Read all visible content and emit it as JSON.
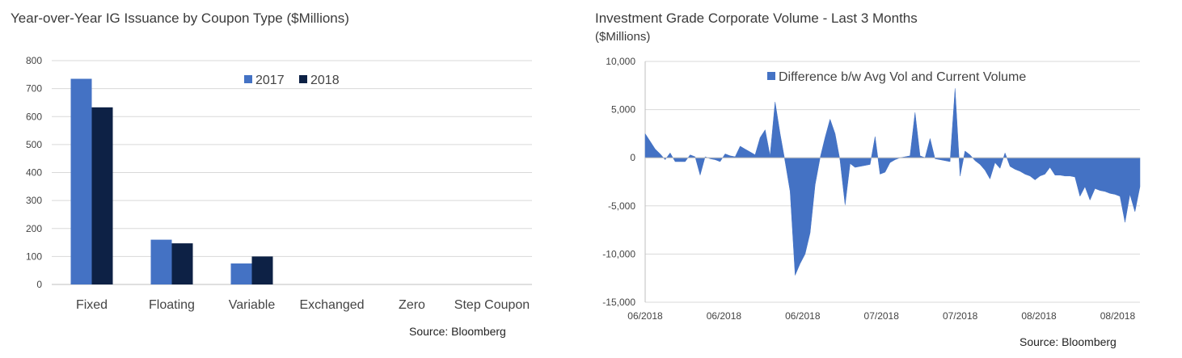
{
  "charts": [
    {
      "type": "bar",
      "title": "Year-over-Year IG Issuance by Coupon Type ($Millions)",
      "source": "Source: Bloomberg",
      "categories": [
        "Fixed",
        "Floating",
        "Variable",
        "Exchanged",
        "Zero",
        "Step Coupon"
      ],
      "series": [
        {
          "name": "2017",
          "color": "#4472c4",
          "values": [
            735,
            160,
            75,
            0,
            0,
            0
          ]
        },
        {
          "name": "2018",
          "color": "#0d2145",
          "values": [
            633,
            147,
            100,
            0,
            0,
            0
          ]
        }
      ],
      "yticks": [
        "800",
        "700",
        "600",
        "500",
        "400",
        "300",
        "200",
        "100",
        "0"
      ],
      "ylim": [
        0,
        800
      ],
      "grid": true,
      "legend_position": "top-center"
    },
    {
      "type": "area",
      "title": "Investment Grade Corporate Volume - Last 3 Months",
      "subtitle": "($Millions)",
      "source": "Source: Bloomberg",
      "series_name": "Difference b/w Avg Vol and Current Volume",
      "color": "#4472c4",
      "ylim": [
        -15000,
        10000
      ],
      "yticks": [
        "10,000",
        "5,000",
        "0",
        "-5,000",
        "-10,000",
        "-15,000"
      ],
      "xticks": [
        "06/2018",
        "06/2018",
        "06/2018",
        "07/2018",
        "07/2018",
        "08/2018",
        "08/2018"
      ],
      "grid": true,
      "legend_position": "top-center",
      "values": [
        2500,
        1700,
        900,
        400,
        -200,
        500,
        -400,
        -400,
        -400,
        300,
        100,
        -1800,
        100,
        -100,
        -200,
        -400,
        400,
        200,
        100,
        1200,
        900,
        600,
        300,
        2100,
        2900,
        200,
        5800,
        2500,
        -400,
        -3500,
        -12200,
        -11000,
        -10000,
        -7800,
        -2800,
        0,
        2100,
        4000,
        2500,
        -300,
        -4900,
        -600,
        -1000,
        -900,
        -800,
        -700,
        2200,
        -1700,
        -1500,
        -500,
        -200,
        0,
        100,
        200,
        4700,
        200,
        0,
        2000,
        -100,
        -200,
        -300,
        -400,
        7200,
        -1900,
        700,
        300,
        -300,
        -700,
        -1300,
        -2200,
        -500,
        -1100,
        500,
        -900,
        -1200,
        -1400,
        -1700,
        -1900,
        -2300,
        -1900,
        -1700,
        -1000,
        -1800,
        -1800,
        -1900,
        -1900,
        -2000,
        -4000,
        -3000,
        -4400,
        -3200,
        -3400,
        -3500,
        -3700,
        -3800,
        -4000,
        -6700,
        -3800,
        -5600,
        -3000
      ]
    }
  ]
}
